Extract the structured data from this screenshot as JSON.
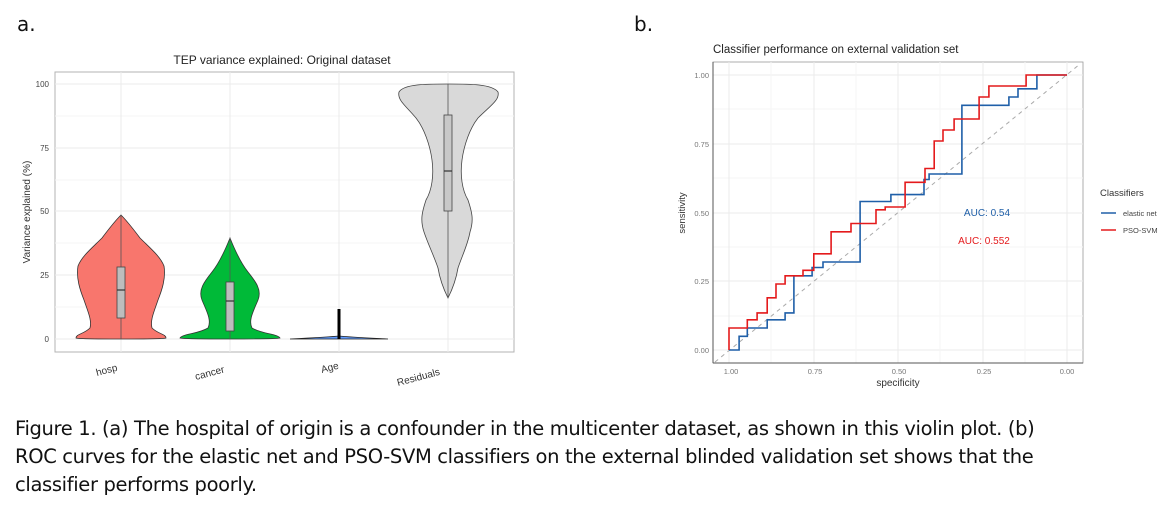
{
  "panels": {
    "a": {
      "label": "a."
    },
    "b": {
      "label": "b."
    }
  },
  "caption": {
    "lines": [
      "Figure 1. (a) The hospital of origin is a confounder in the multicenter dataset, as shown in this violin plot. (b)",
      "ROC curves for the elastic net and PSO-SVM classifiers on the external blinded validation set shows that the",
      "classifier performs poorly."
    ]
  },
  "colors": {
    "hosp": "#F8766D",
    "cancer": "#00BA38",
    "age": "#619CFF",
    "residuals": "#D9D9D9",
    "elastic_net": "#1F5FA8",
    "pso_svm": "#E41A1C"
  },
  "chart_data": [
    {
      "type": "violin",
      "title": "TEP variance explained: Original dataset",
      "xlabel": "",
      "ylabel": "Variance explained (%)",
      "ylim": [
        0,
        100
      ],
      "yticks": [
        "0",
        "25",
        "50",
        "75",
        "100"
      ],
      "categories": [
        "hosp",
        "cancer",
        "Age",
        "Residuals"
      ],
      "grid": true,
      "series": [
        {
          "name": "hosp",
          "min": 0,
          "q1": 8,
          "median": 19,
          "q3": 28,
          "max": 48,
          "color": "#F8766D"
        },
        {
          "name": "cancer",
          "min": 0,
          "q1": 3,
          "median": 14,
          "q3": 22,
          "max": 39,
          "color": "#00BA38"
        },
        {
          "name": "Age",
          "min": 0,
          "q1": 0,
          "median": 0,
          "q3": 0.5,
          "max": 11,
          "color": "#619CFF"
        },
        {
          "name": "Residuals",
          "min": 16,
          "q1": 50,
          "median": 66,
          "q3": 88,
          "max": 100,
          "color": "#D9D9D9"
        }
      ]
    },
    {
      "type": "line",
      "title": "Classifier performance on external validation set",
      "xlabel": "specificity",
      "ylabel": "sensitivity",
      "xlim": [
        1.0,
        0.0
      ],
      "ylim": [
        0.0,
        1.0
      ],
      "xticks": [
        "1.00",
        "0.75",
        "0.50",
        "0.25",
        "0.00"
      ],
      "yticks": [
        "0.00",
        "0.25",
        "0.50",
        "0.75",
        "1.00"
      ],
      "grid": true,
      "legend": {
        "title": "Classifiers",
        "position": "right",
        "entries": [
          "elastic net",
          "PSO-SVM"
        ]
      },
      "annotations": [
        {
          "text": "AUC: 0.54",
          "color": "#1F5FA8",
          "x": 0.33,
          "y": 0.5
        },
        {
          "text": "AUC: 0.552",
          "color": "#E41A1C",
          "x": 0.33,
          "y": 0.4
        }
      ],
      "series": [
        {
          "name": "elastic net",
          "auc": 0.54,
          "specificity": [
            1.0,
            0.97,
            0.97,
            0.946,
            0.946,
            0.887,
            0.887,
            0.834,
            0.834,
            0.808,
            0.808,
            0.754,
            0.754,
            0.722,
            0.722,
            0.612,
            0.612,
            0.521,
            0.521,
            0.423,
            0.423,
            0.408,
            0.408,
            0.311,
            0.311,
            0.172,
            0.172,
            0.145,
            0.145,
            0.089,
            0.089,
            0.0
          ],
          "sensitivity": [
            0.0,
            0.0,
            0.05,
            0.05,
            0.08,
            0.08,
            0.11,
            0.11,
            0.135,
            0.135,
            0.27,
            0.27,
            0.3,
            0.3,
            0.32,
            0.32,
            0.54,
            0.54,
            0.565,
            0.565,
            0.62,
            0.62,
            0.64,
            0.64,
            0.89,
            0.89,
            0.92,
            0.92,
            0.95,
            0.95,
            1.0,
            1.0
          ]
        },
        {
          "name": "PSO-SVM",
          "auc": 0.552,
          "specificity": [
            1.0,
            1.0,
            0.946,
            0.946,
            0.917,
            0.917,
            0.887,
            0.887,
            0.861,
            0.861,
            0.834,
            0.834,
            0.781,
            0.781,
            0.749,
            0.749,
            0.698,
            0.698,
            0.639,
            0.639,
            0.565,
            0.565,
            0.538,
            0.538,
            0.479,
            0.479,
            0.42,
            0.42,
            0.393,
            0.393,
            0.367,
            0.367,
            0.334,
            0.334,
            0.26,
            0.26,
            0.231,
            0.231,
            0.121,
            0.121,
            0.065,
            0.065,
            0.0
          ],
          "sensitivity": [
            0.0,
            0.08,
            0.08,
            0.11,
            0.11,
            0.135,
            0.135,
            0.19,
            0.19,
            0.24,
            0.24,
            0.27,
            0.27,
            0.29,
            0.29,
            0.35,
            0.35,
            0.43,
            0.43,
            0.46,
            0.46,
            0.51,
            0.51,
            0.52,
            0.52,
            0.61,
            0.61,
            0.66,
            0.66,
            0.76,
            0.76,
            0.8,
            0.8,
            0.84,
            0.84,
            0.92,
            0.92,
            0.96,
            0.96,
            1.0,
            1.0,
            1.0,
            1.0
          ]
        }
      ]
    }
  ]
}
